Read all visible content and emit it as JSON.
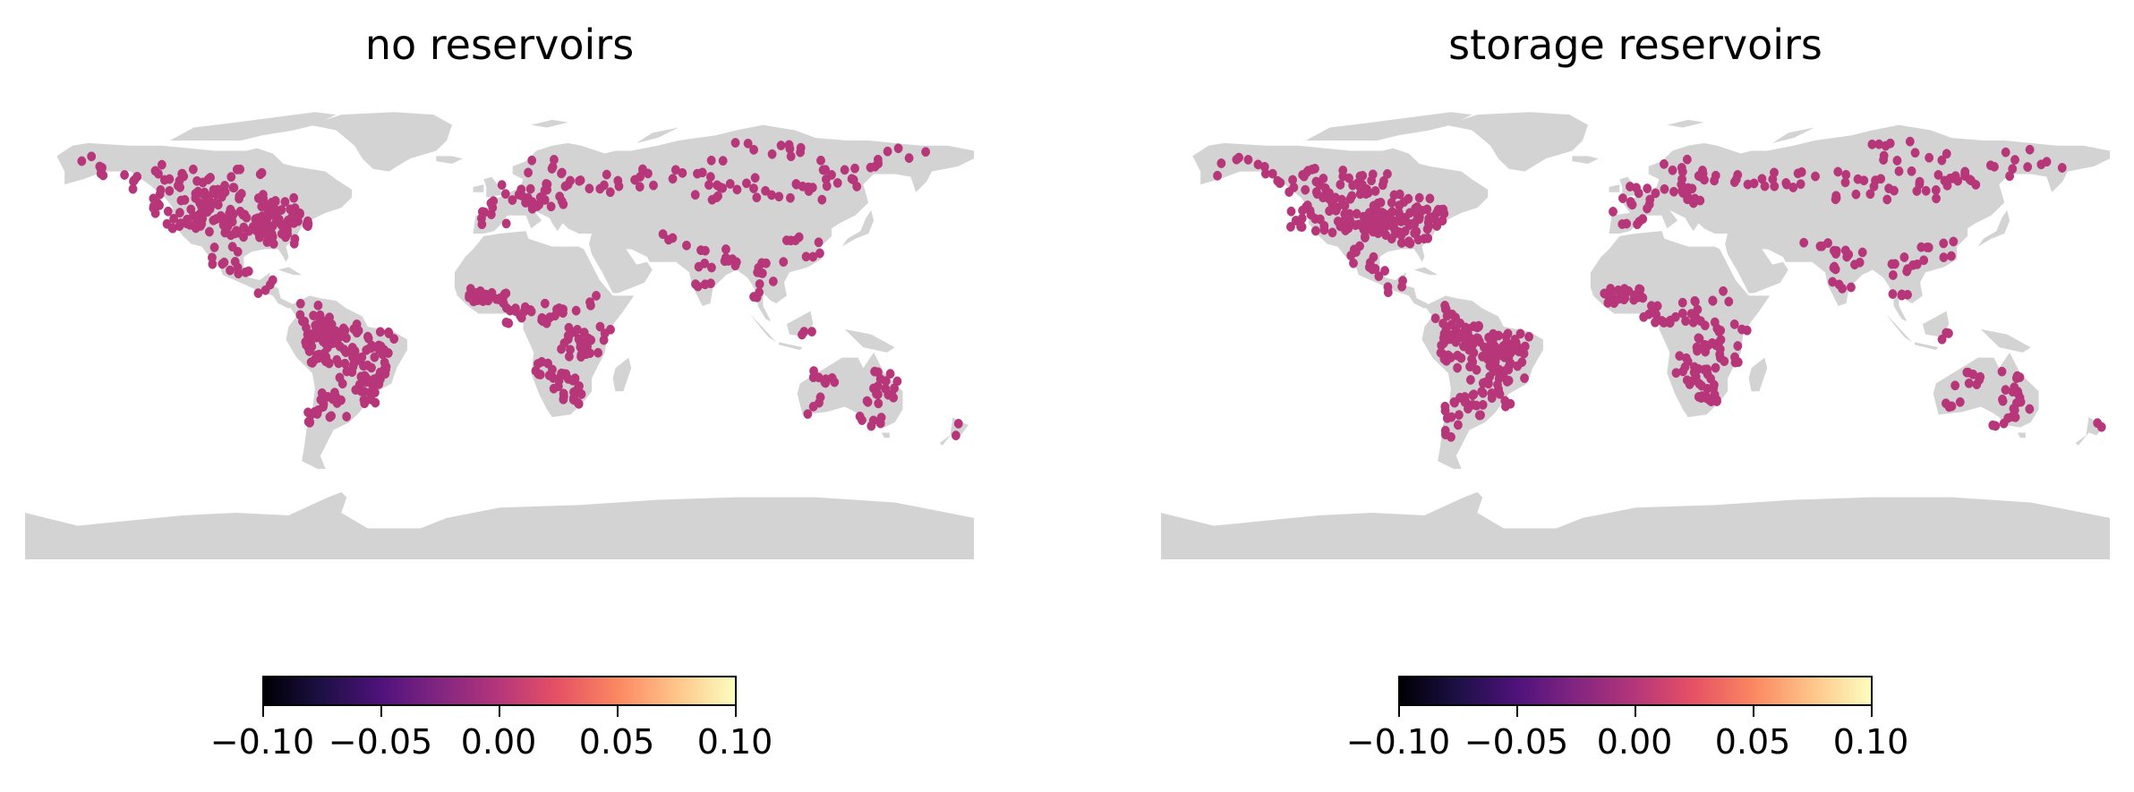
{
  "figure": {
    "panels": [
      {
        "title": "no reservoirs"
      },
      {
        "title": "storage reservoirs"
      }
    ],
    "colorbar": {
      "colormap": "magma",
      "range": [
        -0.1,
        0.1
      ],
      "tick_labels": [
        "−0.10",
        "−0.05",
        "0.00",
        "0.05",
        "0.10"
      ]
    },
    "colors": {
      "land": "#d3d3d3",
      "station": "#b63679",
      "background": "#ffffff"
    }
  },
  "map": {
    "projection": "equirectangular",
    "lon_range": [
      -180,
      180
    ],
    "lat_range": [
      -90,
      90
    ],
    "station_value": "all stations at approximately 0.00 on the colorbar scale"
  }
}
